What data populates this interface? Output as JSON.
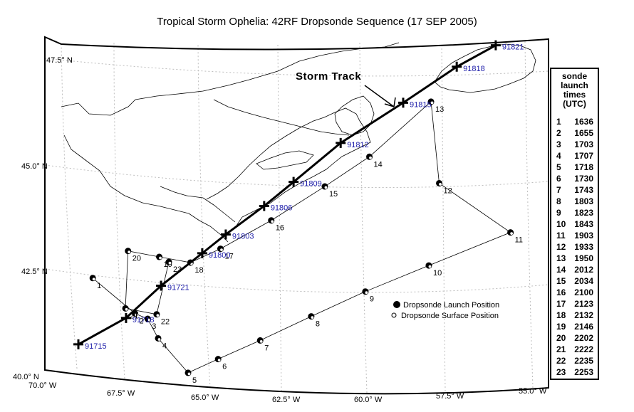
{
  "title": "Tropical Storm Ophelia: 42RF Dropsonde Sequence (17 SEP 2005)",
  "annotation": "Storm Track",
  "legend": {
    "launch": "Dropsonde Launch Position",
    "surface": "Dropsonde Surface Position"
  },
  "times_box": {
    "header": [
      "sonde",
      "launch",
      "times",
      "(UTC)"
    ],
    "rows": [
      {
        "n": "1",
        "t": "1636"
      },
      {
        "n": "2",
        "t": "1655"
      },
      {
        "n": "3",
        "t": "1703"
      },
      {
        "n": "4",
        "t": "1707"
      },
      {
        "n": "5",
        "t": "1718"
      },
      {
        "n": "6",
        "t": "1730"
      },
      {
        "n": "7",
        "t": "1743"
      },
      {
        "n": "8",
        "t": "1803"
      },
      {
        "n": "9",
        "t": "1823"
      },
      {
        "n": "10",
        "t": "1843"
      },
      {
        "n": "11",
        "t": "1903"
      },
      {
        "n": "12",
        "t": "1933"
      },
      {
        "n": "13",
        "t": "1950"
      },
      {
        "n": "14",
        "t": "2012"
      },
      {
        "n": "15",
        "t": "2034"
      },
      {
        "n": "16",
        "t": "2100"
      },
      {
        "n": "17",
        "t": "2123"
      },
      {
        "n": "18",
        "t": "2132"
      },
      {
        "n": "19",
        "t": "2146"
      },
      {
        "n": "20",
        "t": "2202"
      },
      {
        "n": "21",
        "t": "2222"
      },
      {
        "n": "22",
        "t": "2235"
      },
      {
        "n": "23",
        "t": "2253"
      }
    ]
  },
  "chart_data": {
    "type": "map-track",
    "lon_ticks": [
      "70.0° W",
      "67.5° W",
      "65.0° W",
      "62.5° W",
      "60.0° W",
      "57.5° W",
      "55.0° W"
    ],
    "lat_ticks": [
      "40.0° N",
      "42.5° N",
      "45.0° N",
      "47.5° N"
    ],
    "storm_track": [
      {
        "label": "91715",
        "lon": -69.2,
        "lat": 41.6
      },
      {
        "label": "91718",
        "lon": -67.6,
        "lat": 42.2
      },
      {
        "label": "91721",
        "lon": -66.4,
        "lat": 42.9
      },
      {
        "label": "91800",
        "lon": -65.0,
        "lat": 43.6
      },
      {
        "label": "91803",
        "lon": -64.2,
        "lat": 44.0
      },
      {
        "label": "91806",
        "lon": -62.9,
        "lat": 44.6
      },
      {
        "label": "91809",
        "lon": -61.9,
        "lat": 45.1
      },
      {
        "label": "91812",
        "lon": -60.3,
        "lat": 45.9
      },
      {
        "label": "91815",
        "lon": -58.2,
        "lat": 46.7
      },
      {
        "label": "91818",
        "lon": -56.4,
        "lat": 47.4
      },
      {
        "label": "91821",
        "lon": -55.1,
        "lat": 47.8
      }
    ],
    "dropsondes": [
      {
        "n": "1",
        "lon": -68.6,
        "lat": 43.0
      },
      {
        "n": "2",
        "lon": -67.3,
        "lat": 42.3
      },
      {
        "n": "3",
        "lon": -66.9,
        "lat": 42.2
      },
      {
        "n": "4",
        "lon": -66.6,
        "lat": 41.8
      },
      {
        "n": "5",
        "lon": -65.7,
        "lat": 41.1
      },
      {
        "n": "6",
        "lon": -64.7,
        "lat": 41.4
      },
      {
        "n": "7",
        "lon": -63.3,
        "lat": 41.8
      },
      {
        "n": "8",
        "lon": -61.6,
        "lat": 42.3
      },
      {
        "n": "9",
        "lon": -59.8,
        "lat": 42.8
      },
      {
        "n": "10",
        "lon": -57.7,
        "lat": 43.3
      },
      {
        "n": "11",
        "lon": -55.0,
        "lat": 43.9
      },
      {
        "n": "12",
        "lon": -57.2,
        "lat": 45.0
      },
      {
        "n": "13",
        "lon": -57.3,
        "lat": 46.7
      },
      {
        "n": "14",
        "lon": -59.4,
        "lat": 45.6
      },
      {
        "n": "15",
        "lon": -60.9,
        "lat": 45.0
      },
      {
        "n": "16",
        "lon": -62.7,
        "lat": 44.3
      },
      {
        "n": "17",
        "lon": -64.4,
        "lat": 43.7
      },
      {
        "n": "18",
        "lon": -65.4,
        "lat": 43.4
      },
      {
        "n": "19",
        "lon": -66.4,
        "lat": 43.5
      },
      {
        "n": "20",
        "lon": -67.4,
        "lat": 43.6
      },
      {
        "n": "21",
        "lon": -67.6,
        "lat": 42.4
      },
      {
        "n": "22",
        "lon": -66.6,
        "lat": 42.3
      },
      {
        "n": "23",
        "lon": -66.1,
        "lat": 43.4
      }
    ]
  }
}
